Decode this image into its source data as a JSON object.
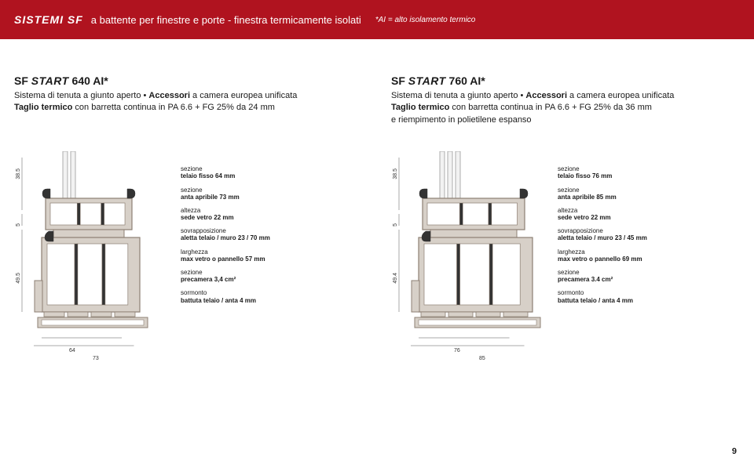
{
  "colors": {
    "brand": "#b0131f",
    "text": "#1a1a1a",
    "bg": "#ffffff",
    "profile_outline": "#8d7f73",
    "profile_fill": "#d7d0c8",
    "rubber": "#333333",
    "glass_line": "#9a9a9a"
  },
  "header": {
    "logo": "SISTEMI SF",
    "title": "a battente per finestre e porte - finestra termicamente isolati",
    "note": "*AI = alto isolamento termico"
  },
  "products": [
    {
      "name_prefix": "SF",
      "name_start": "START",
      "name_suffix": "640 AI*",
      "line1_a": "Sistema di tenuta a giunto aperto • ",
      "line1_b": "Accessori",
      "line1_c": " a camera europea unificata",
      "line2_a": "Taglio termico",
      "line2_b": " con barretta continua in PA 6.6 + FG 25% da 24 mm",
      "line3": ""
    },
    {
      "name_prefix": "SF",
      "name_start": "START",
      "name_suffix": "760 AI*",
      "line1_a": "Sistema di tenuta a giunto aperto • ",
      "line1_b": "Accessori",
      "line1_c": " a camera europea unificata",
      "line2_a": "Taglio termico",
      "line2_b": " con barretta continua in PA 6.6 + FG 25% da 36 mm",
      "line3": "e riempimento in polietilene espanso"
    }
  ],
  "diagrams": [
    {
      "dims": {
        "w1": "64",
        "w2": "73",
        "h1": "38.5",
        "h2": "5",
        "h3": "49.5"
      },
      "specs": [
        {
          "lbl": "sezione",
          "val": "telaio fisso 64 mm"
        },
        {
          "lbl": "sezione",
          "val": "anta apribile 73 mm"
        },
        {
          "lbl": "altezza",
          "val": "sede vetro 22 mm"
        },
        {
          "lbl": "sovrapposizione",
          "val": "aletta telaio / muro 23 / 70 mm"
        },
        {
          "lbl": "larghezza",
          "val": "max vetro o pannello 57 mm"
        },
        {
          "lbl": "sezione",
          "val": "precamera 3,4 cm²"
        },
        {
          "lbl": "sormonto",
          "val": "battuta telaio / anta 4 mm"
        }
      ]
    },
    {
      "dims": {
        "w1": "76",
        "w2": "85",
        "h1": "38.5",
        "h2": "5",
        "h3": "49.4"
      },
      "specs": [
        {
          "lbl": "sezione",
          "val": "telaio fisso 76 mm"
        },
        {
          "lbl": "sezione",
          "val": "anta apribile 85 mm"
        },
        {
          "lbl": "altezza",
          "val": "sede vetro 22 mm"
        },
        {
          "lbl": "sovrapposizione",
          "val": "aletta telaio / muro 23 / 45 mm"
        },
        {
          "lbl": "larghezza",
          "val": "max vetro o pannello 69 mm"
        },
        {
          "lbl": "sezione",
          "val": "precamera 3.4 cm²"
        },
        {
          "lbl": "sormonto",
          "val": "battuta telaio / anta 4 mm"
        }
      ]
    }
  ],
  "page_number": "9"
}
